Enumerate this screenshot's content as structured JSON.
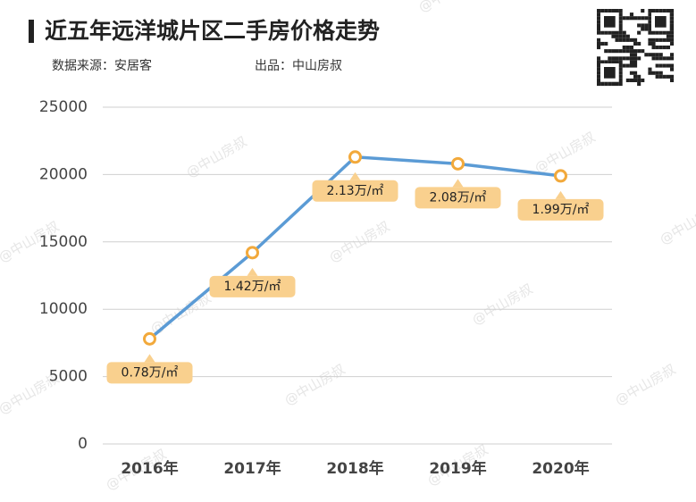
{
  "chart_data": {
    "type": "line",
    "title": "近五年远洋城片区二手房价格走势",
    "source": "数据来源：安居客",
    "producer": "出品：中山房叔",
    "watermark": "@中山房叔",
    "categories": [
      "2016年",
      "2017年",
      "2018年",
      "2019年",
      "2020年"
    ],
    "values": [
      7800,
      14200,
      21300,
      20800,
      19900
    ],
    "value_labels": [
      "0.78万/㎡",
      "1.42万/㎡",
      "2.13万/㎡",
      "2.08万/㎡",
      "1.99万/㎡"
    ],
    "color": "#5b9bd5",
    "marker_color": "#f2a93b",
    "label_color": "#f9d08e",
    "ylim": [
      0,
      25000
    ],
    "yticks": [
      0,
      5000,
      10000,
      15000,
      20000,
      25000
    ],
    "grid": true
  }
}
